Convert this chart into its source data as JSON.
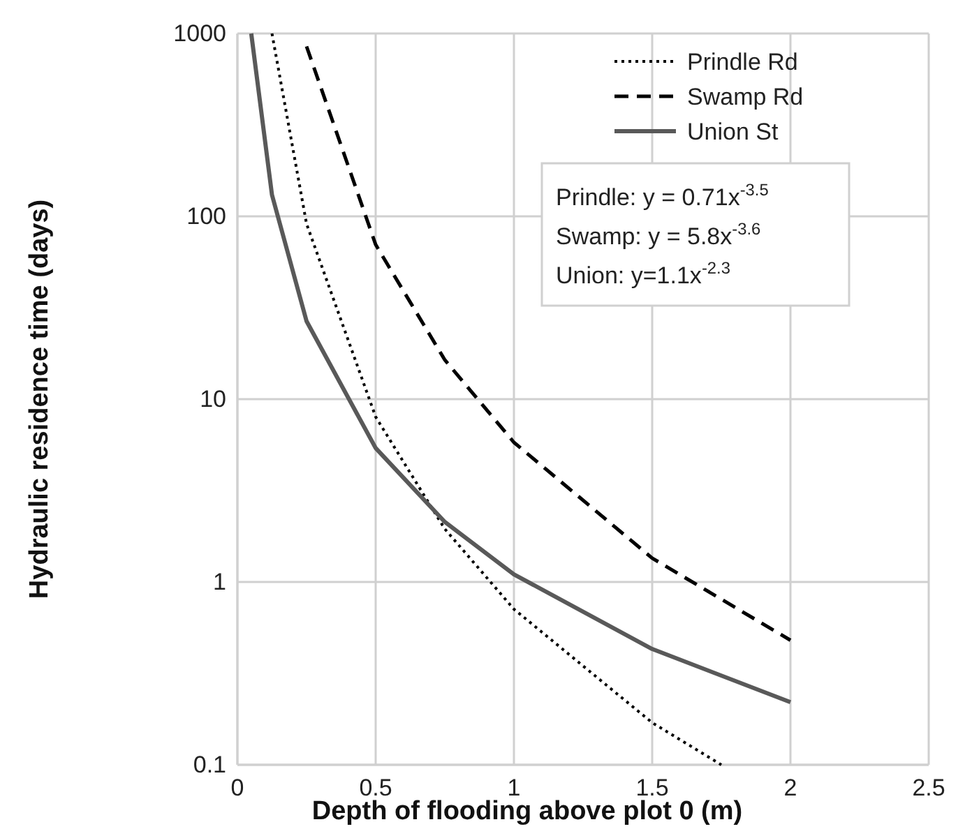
{
  "chart_data": {
    "type": "line",
    "xlabel": "Depth of flooding above plot 0 (m)",
    "ylabel": "Hydraulic residence time (days)",
    "log": "y",
    "xlim": [
      0,
      2.5
    ],
    "xticks": [
      0,
      0.5,
      1,
      1.5,
      2,
      2.5
    ],
    "ylim": [
      0.1,
      1000
    ],
    "yticks": [
      0.1,
      1,
      10,
      100,
      1000
    ],
    "grid": true,
    "legend": "top right",
    "marker": "none",
    "series": [
      {
        "name": "Prindle Rd",
        "color": "#000000",
        "line_style": "dotted",
        "x": [
          0.125,
          0.25,
          0.5,
          0.75,
          1,
          1.5,
          1.75
        ],
        "values": [
          1000,
          91,
          8.0,
          1.95,
          0.71,
          0.17,
          0.1
        ]
      },
      {
        "name": "Swamp Rd",
        "color": "#000000",
        "line_style": "dashed",
        "x": [
          0.25,
          0.5,
          0.75,
          1,
          1.5,
          2
        ],
        "values": [
          850,
          70,
          16.4,
          5.8,
          1.35,
          0.48
        ]
      },
      {
        "name": "Union St",
        "color": "#595959",
        "line_style": "solid",
        "x": [
          0.05,
          0.125,
          0.25,
          0.5,
          0.75,
          1,
          1.5,
          2
        ],
        "values": [
          1000,
          131,
          26.7,
          5.4,
          2.13,
          1.1,
          0.43,
          0.22
        ]
      }
    ],
    "annotations": [
      "Prindle: y = 0.71x$^{-3.5}$",
      "Swamp: y = 5.8x$^{-3.6}$",
      "Union: y=1.1x$^{-2.3}$"
    ]
  }
}
